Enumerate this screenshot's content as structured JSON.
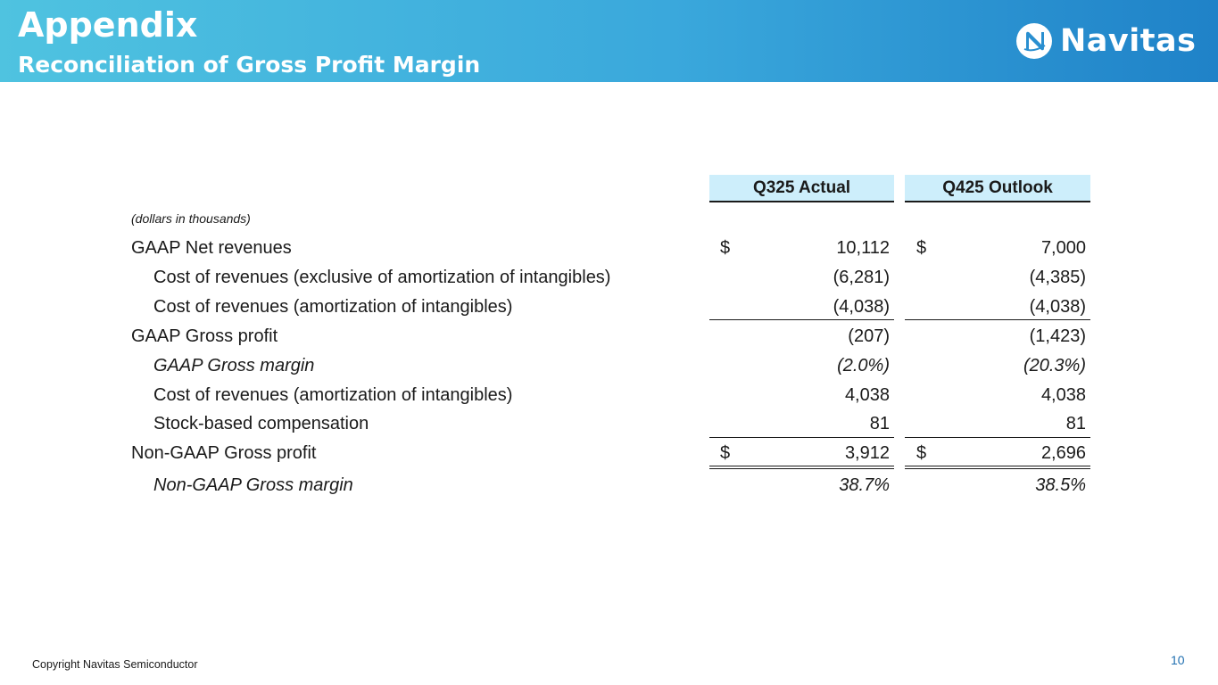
{
  "header": {
    "title": "Appendix",
    "subtitle": "Reconciliation of Gross Profit Margin",
    "logo_text": "Navitas",
    "logo_icon": "navitas-n-logo"
  },
  "table": {
    "columns": [
      "Q325 Actual",
      "Q425 Outlook"
    ],
    "unit_note": "(dollars in thousands)",
    "rows": [
      {
        "label": "GAAP Net revenues",
        "indent": 0,
        "italic": false,
        "dollar": true,
        "v1": "10,112",
        "v2": "7,000"
      },
      {
        "label": "Cost of revenues (exclusive of amortization of intangibles)",
        "indent": 1,
        "italic": false,
        "dollar": false,
        "v1": "(6,281)",
        "v2": "(4,385)"
      },
      {
        "label": "Cost of revenues (amortization of intangibles)",
        "indent": 1,
        "italic": false,
        "dollar": false,
        "v1": "(4,038)",
        "v2": "(4,038)"
      },
      {
        "label": "GAAP Gross profit",
        "indent": 0,
        "italic": false,
        "dollar": false,
        "v1": "(207)",
        "v2": "(1,423)"
      },
      {
        "label": "GAAP Gross margin",
        "indent": 1,
        "italic": true,
        "dollar": false,
        "v1": "(2.0%)",
        "v2": "(20.3%)"
      },
      {
        "label": "Cost of revenues (amortization of intangibles)",
        "indent": 1,
        "italic": false,
        "dollar": false,
        "v1": "4,038",
        "v2": "4,038"
      },
      {
        "label": "Stock-based compensation",
        "indent": 1,
        "italic": false,
        "dollar": false,
        "v1": "81",
        "v2": "81"
      },
      {
        "label": "Non-GAAP Gross profit",
        "indent": 0,
        "italic": false,
        "dollar": true,
        "v1": "3,912",
        "v2": "2,696"
      },
      {
        "label": "Non-GAAP Gross margin",
        "indent": 1,
        "italic": true,
        "dollar": false,
        "v1": "38.7%",
        "v2": "38.5%"
      }
    ],
    "currency_symbol": "$"
  },
  "footer": {
    "copyright": "Copyright Navitas Semiconductor",
    "page_number": "10"
  },
  "colors": {
    "banner_start": "#4fc3e0",
    "banner_end": "#1f82c8",
    "column_header_fill": "#cdeefb",
    "page_number": "#1f6fb0"
  }
}
